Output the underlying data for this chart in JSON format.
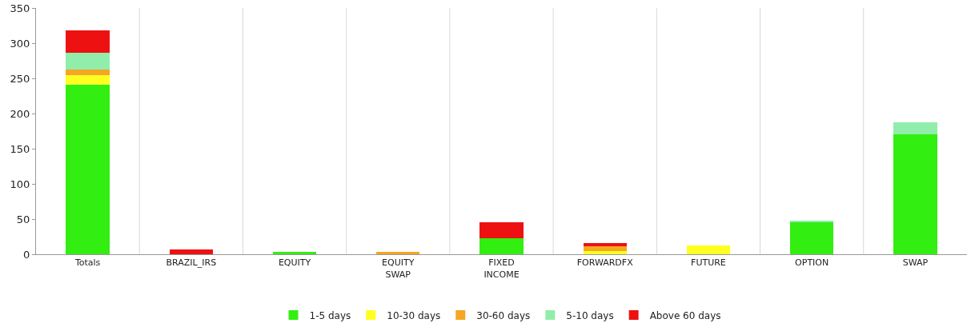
{
  "chart_data": {
    "type": "bar",
    "stacked": true,
    "categories": [
      "Totals",
      "BRAZIL_IRS",
      "EQUITY",
      "EQUITY\nSWAP",
      "FIXED\nINCOME",
      "FORWARDFX",
      "FUTURE",
      "OPTION",
      "SWAP"
    ],
    "series": [
      {
        "name": "1-5 days",
        "color": "#33ee11",
        "values": [
          241,
          0,
          3,
          0,
          23,
          0,
          0,
          45,
          171
        ]
      },
      {
        "name": "10-30 days",
        "color": "#ffff22",
        "values": [
          13,
          0,
          0,
          1,
          0,
          5,
          12,
          0,
          0
        ]
      },
      {
        "name": "30-60 days",
        "color": "#f5a623",
        "values": [
          9,
          0,
          0,
          2,
          0,
          6,
          0,
          0,
          0
        ]
      },
      {
        "name": "5-10 days",
        "color": "#90eeaa",
        "values": [
          23,
          0,
          0,
          0,
          0,
          0,
          0,
          3,
          16
        ]
      },
      {
        "name": "Above 60 days",
        "color": "#ee1111",
        "values": [
          32,
          7,
          0,
          0,
          22,
          5,
          0,
          0,
          0
        ]
      }
    ],
    "ylim": [
      0,
      350
    ],
    "yticks": [
      0,
      50,
      100,
      150,
      200,
      250,
      300,
      350
    ],
    "grid": "x",
    "legend": "bottom"
  }
}
